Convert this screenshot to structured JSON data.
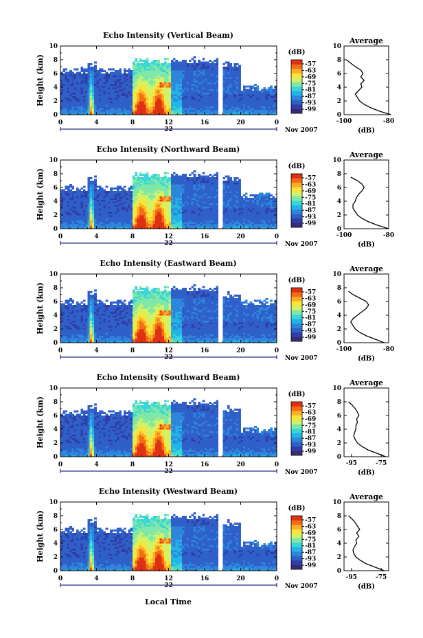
{
  "figure": {
    "xlabel": "Local Time",
    "date_label": "Nov 2007",
    "day_label": "22",
    "colorbar_unit": "(dB)",
    "avg_title": "Average",
    "avg_unit": "(dB)",
    "colormap": [
      "#3a2b7a",
      "#2f3fa6",
      "#2f5fc8",
      "#2e86dc",
      "#22b4e8",
      "#38d6d8",
      "#7fe8a8",
      "#d2f266",
      "#fbe43a",
      "#fbb024",
      "#f46c16",
      "#e03014"
    ]
  },
  "chart_data": [
    {
      "type": "heatmap",
      "title": "Echo Intensity (Vertical Beam)",
      "ylabel": "Height (km)",
      "x_range": [
        0,
        24
      ],
      "y_range": [
        0,
        10
      ],
      "x_ticks": [
        "0",
        "4",
        "8",
        "12",
        "16",
        "20",
        "0"
      ],
      "y_ticks": [
        "0",
        "2",
        "4",
        "6",
        "8",
        "10"
      ],
      "colorbar_ticks": [
        "-57",
        "-63",
        "-69",
        "-75",
        "-81",
        "-87",
        "-93",
        "-99"
      ],
      "data_gaps_hours": [
        [
          17.6,
          17.9
        ]
      ],
      "echo_top_km": {
        "0-3": 6.5,
        "3-4": 7.5,
        "4-8": 6.5,
        "8-17.6": 8.0,
        "18-20": 7.5,
        "20-24": 4.0
      },
      "average_profile": {
        "x_range": [
          -100,
          -80
        ],
        "x_ticks": [
          "-100",
          "-80"
        ],
        "y_range": [
          0,
          10
        ],
        "height_km": [
          0,
          0.5,
          1.0,
          1.5,
          2.0,
          2.5,
          3.0,
          3.5,
          4.0,
          4.5,
          5.0,
          5.5,
          6.0,
          6.5,
          7.0,
          7.5,
          8.0
        ],
        "db": [
          -79,
          -84,
          -88,
          -91,
          -93,
          -94,
          -95,
          -93.5,
          -92,
          -92.5,
          -91,
          -92.5,
          -91.5,
          -92.5,
          -95,
          -97,
          -99
        ]
      }
    },
    {
      "type": "heatmap",
      "title": "Echo Intensity (Northward Beam)",
      "ylabel": "Height (km)",
      "x_range": [
        0,
        24
      ],
      "y_range": [
        0,
        10
      ],
      "x_ticks": [
        "0",
        "4",
        "8",
        "12",
        "16",
        "20",
        "0"
      ],
      "y_ticks": [
        "0",
        "2",
        "4",
        "6",
        "8",
        "10"
      ],
      "colorbar_ticks": [
        "-57",
        "-63",
        "-69",
        "-75",
        "-81",
        "-87",
        "-93",
        "-99"
      ],
      "data_gaps_hours": [
        [
          17.6,
          17.9
        ]
      ],
      "echo_top_km": {
        "0-3": 6.0,
        "3-4": 7.5,
        "4-8": 6.0,
        "8-17.6": 8.0,
        "18-20": 7.5,
        "20-24": 5.0
      },
      "average_profile": {
        "x_range": [
          -100,
          -80
        ],
        "x_ticks": [
          "-100",
          "-80"
        ],
        "y_range": [
          0,
          10
        ],
        "height_km": [
          0,
          0.5,
          1.0,
          1.5,
          2.0,
          2.5,
          3.0,
          3.5,
          4.0,
          4.5,
          5.0,
          5.5,
          6.0,
          6.5,
          7.0,
          7.5
        ],
        "db": [
          -80,
          -85,
          -89,
          -92,
          -94,
          -95,
          -96,
          -96,
          -95,
          -94.5,
          -93.5,
          -92,
          -91,
          -92,
          -94,
          -97
        ]
      }
    },
    {
      "type": "heatmap",
      "title": "Echo Intensity (Eastward Beam)",
      "ylabel": "Height (km)",
      "x_range": [
        0,
        24
      ],
      "y_range": [
        0,
        10
      ],
      "x_ticks": [
        "0",
        "4",
        "8",
        "12",
        "16",
        "20",
        "0"
      ],
      "y_ticks": [
        "0",
        "2",
        "4",
        "6",
        "8",
        "10"
      ],
      "colorbar_ticks": [
        "-57",
        "-63",
        "-69",
        "-75",
        "-81",
        "-87",
        "-93",
        "-99"
      ],
      "data_gaps_hours": [
        [
          17.6,
          17.9
        ]
      ],
      "echo_top_km": {
        "0-3": 6.0,
        "3-4": 7.5,
        "4-8": 6.0,
        "8-17.6": 8.0,
        "18-20": 7.0,
        "20-24": 6.0
      },
      "average_profile": {
        "x_range": [
          -100,
          -80
        ],
        "x_ticks": [
          "-100",
          "-80"
        ],
        "y_range": [
          0,
          10
        ],
        "height_km": [
          0,
          0.5,
          1.0,
          1.5,
          2.0,
          2.5,
          3.0,
          3.5,
          4.0,
          4.5,
          5.0,
          5.5,
          6.0,
          6.5,
          7.0,
          7.5
        ],
        "db": [
          -82,
          -86,
          -90,
          -93,
          -95,
          -96,
          -97,
          -96,
          -94,
          -92,
          -90,
          -89,
          -90,
          -93,
          -96,
          -98
        ]
      }
    },
    {
      "type": "heatmap",
      "title": "Echo Intensity (Southward Beam)",
      "ylabel": "Height (km)",
      "x_range": [
        0,
        24
      ],
      "y_range": [
        0,
        10
      ],
      "x_ticks": [
        "0",
        "4",
        "8",
        "12",
        "16",
        "20",
        "0"
      ],
      "y_ticks": [
        "0",
        "2",
        "4",
        "6",
        "8",
        "10"
      ],
      "colorbar_ticks": [
        "-57",
        "-63",
        "-69",
        "-75",
        "-81",
        "-87",
        "-93",
        "-99"
      ],
      "data_gaps_hours": [
        [
          17.6,
          17.9
        ]
      ],
      "echo_top_km": {
        "0-3": 6.5,
        "3-4": 7.5,
        "4-8": 6.5,
        "8-17.6": 8.0,
        "18-20": 7.0,
        "20-24": 4.0
      },
      "average_profile": {
        "x_range": [
          -100,
          -70
        ],
        "x_ticks": [
          "-95",
          "-75"
        ],
        "y_range": [
          0,
          10
        ],
        "height_km": [
          0,
          0.5,
          1.0,
          1.5,
          2.0,
          2.5,
          3.0,
          3.5,
          4.0,
          4.5,
          5.0,
          5.5,
          6.0,
          6.5,
          7.0,
          7.5,
          8.0
        ],
        "db": [
          -72,
          -78,
          -84,
          -88,
          -91,
          -92.5,
          -93.5,
          -93,
          -92,
          -92,
          -91,
          -91.5,
          -90,
          -91,
          -92.5,
          -94.5,
          -97
        ]
      }
    },
    {
      "type": "heatmap",
      "title": "Echo Intensity (Westward Beam)",
      "ylabel": "Height (km)",
      "x_range": [
        0,
        24
      ],
      "y_range": [
        0,
        10
      ],
      "x_ticks": [
        "0",
        "4",
        "8",
        "12",
        "16",
        "20",
        "0"
      ],
      "y_ticks": [
        "0",
        "2",
        "4",
        "6",
        "8",
        "10"
      ],
      "colorbar_ticks": [
        "-57",
        "-63",
        "-69",
        "-75",
        "-81",
        "-87",
        "-93",
        "-99"
      ],
      "data_gaps_hours": [
        [
          17.6,
          17.9
        ]
      ],
      "echo_top_km": {
        "0-3": 6.0,
        "3-4": 7.5,
        "4-8": 6.0,
        "8-17.6": 8.0,
        "18-20": 7.0,
        "20-24": 4.0
      },
      "average_profile": {
        "x_range": [
          -100,
          -70
        ],
        "x_ticks": [
          "-95",
          "-75"
        ],
        "y_range": [
          0,
          10
        ],
        "height_km": [
          0,
          0.5,
          1.0,
          1.5,
          2.0,
          2.5,
          3.0,
          3.5,
          4.0,
          4.5,
          5.0,
          5.5,
          6.0,
          6.5,
          7.0,
          7.5,
          8.0
        ],
        "db": [
          -73,
          -79,
          -85,
          -89,
          -92,
          -93.5,
          -94,
          -93,
          -91.5,
          -92,
          -90,
          -91.5,
          -89.5,
          -91,
          -92.5,
          -94.5,
          -97
        ]
      }
    }
  ]
}
